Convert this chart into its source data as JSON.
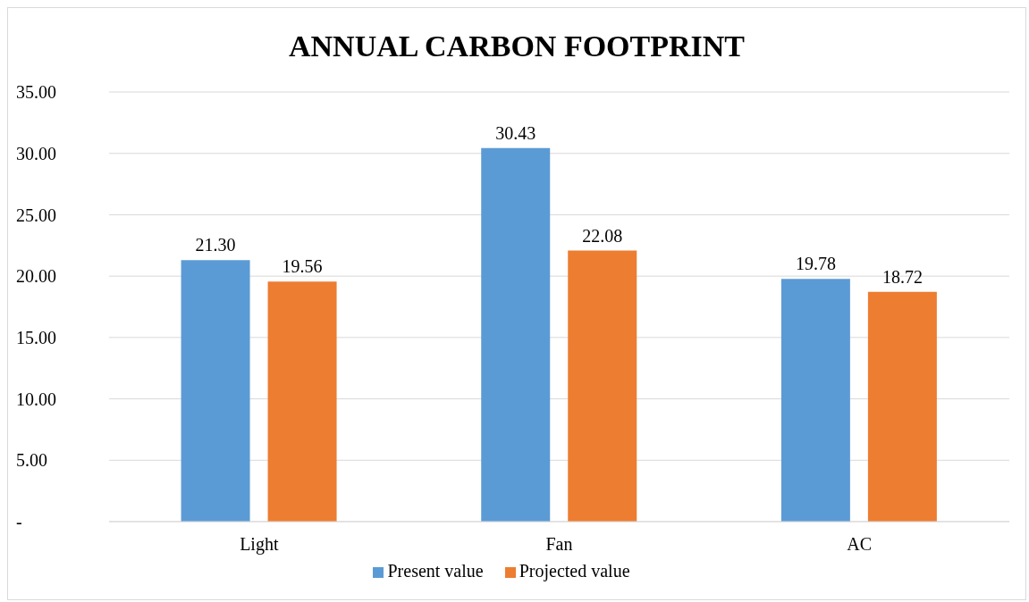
{
  "chart_data": {
    "type": "bar",
    "title": "ANNUAL CARBON FOOTPRINT",
    "categories": [
      "Light",
      "Fan",
      "AC"
    ],
    "series": [
      {
        "name": "Present value",
        "color": "#5b9bd5",
        "values": [
          21.3,
          30.43,
          19.78
        ],
        "value_labels": [
          "21.30",
          "30.43",
          "19.78"
        ]
      },
      {
        "name": "Projected value",
        "color": "#ed7d31",
        "values": [
          19.56,
          22.08,
          18.72
        ],
        "value_labels": [
          "19.56",
          "22.08",
          "18.72"
        ]
      }
    ],
    "ylim": [
      0,
      35
    ],
    "yticks": [
      {
        "value": 0,
        "label": "-"
      },
      {
        "value": 5,
        "label": "5.00"
      },
      {
        "value": 10,
        "label": "10.00"
      },
      {
        "value": 15,
        "label": "15.00"
      },
      {
        "value": 20,
        "label": "20.00"
      },
      {
        "value": 25,
        "label": "25.00"
      },
      {
        "value": 30,
        "label": "30.00"
      },
      {
        "value": 35,
        "label": "35.00"
      }
    ],
    "grid": "y",
    "legend": "bottom"
  }
}
